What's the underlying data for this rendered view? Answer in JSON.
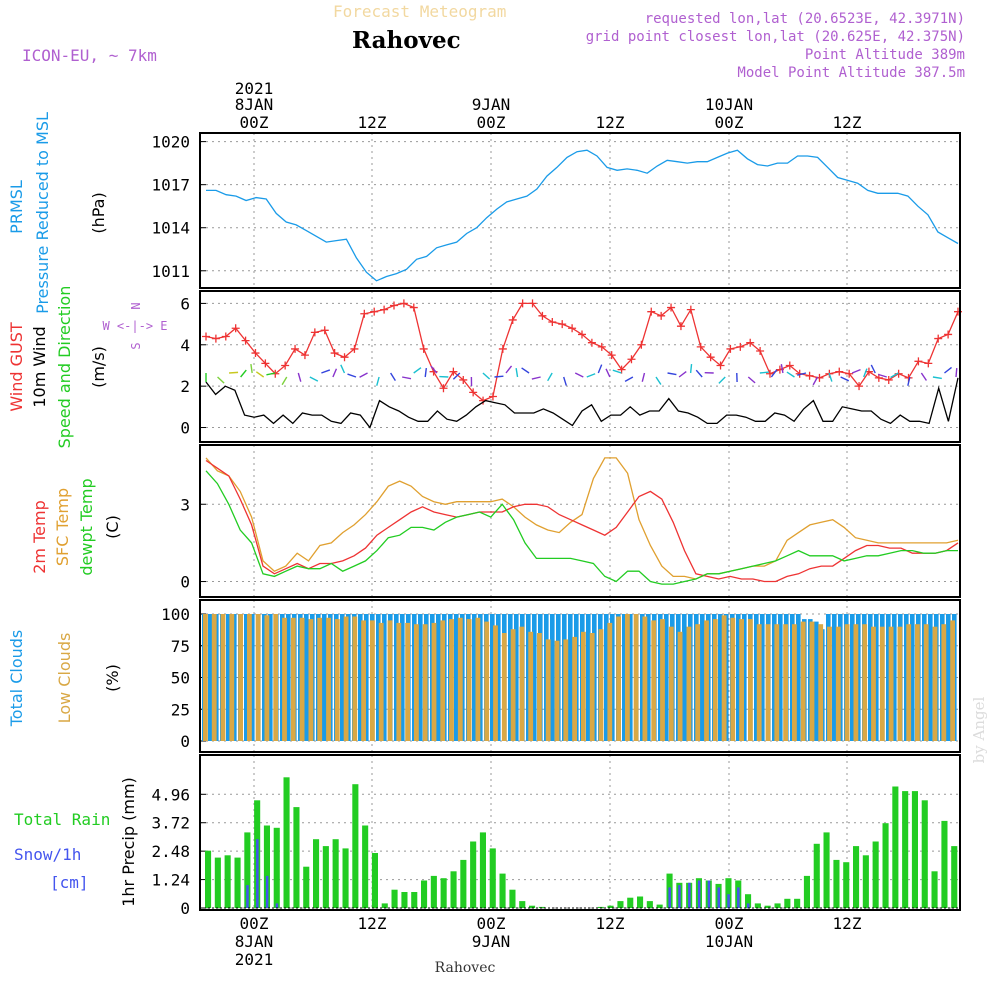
{
  "header": {
    "title": "Rahovec",
    "subtitle": "Forecast Meteogram",
    "model": "ICON-EU, ~ 7km",
    "requested": "requested lon,lat (20.6523E, 42.3971N)",
    "grid_point": "grid point closest lon,lat (20.625E, 42.375N)",
    "point_altitude": "Point Altitude 389m",
    "model_altitude": "Model Point Altitude 387.5m"
  },
  "footer": {
    "place": "Rahovec",
    "credit": "by Angel"
  },
  "time_axis": {
    "top_year": "2021",
    "ticks": [
      "00Z",
      "12Z",
      "00Z",
      "12Z",
      "00Z",
      "12Z"
    ],
    "dates": [
      "8JAN",
      "9JAN",
      "10JAN"
    ],
    "bottom_year": "2021"
  },
  "colors": {
    "pressure": "#1a9be8",
    "gust": "#ee3333",
    "wind": "#000000",
    "t2m": "#ee3333",
    "tsfc": "#e0a030",
    "dew": "#22cc22",
    "total_clouds": "#1a9be8",
    "low_clouds": "#d9a845",
    "rain": "#22cc22",
    "snow": "#4455ee",
    "purple": "#b060d0"
  },
  "chart_data": [
    {
      "type": "line",
      "title": "PRMSL Pressure Reduced to MSL",
      "ylabel": "(hPa)",
      "yticks": [
        "1020",
        "1017",
        "1014",
        "1011"
      ],
      "ylim": [
        1009.8,
        1020.6
      ],
      "x_hours": [
        -3,
        -2,
        -1,
        0,
        1,
        2,
        3,
        4,
        5,
        6,
        7,
        8,
        9,
        10,
        11,
        12,
        13,
        14,
        15,
        16,
        17,
        18,
        19,
        20,
        21,
        22,
        23,
        24,
        25,
        26,
        27,
        28,
        29,
        30,
        31,
        32,
        33,
        34,
        35,
        36,
        37,
        38,
        39,
        40,
        41,
        42,
        43,
        44,
        45,
        46,
        47,
        48,
        49,
        50,
        51,
        52,
        53,
        54,
        55,
        56,
        57,
        58,
        59,
        60,
        61,
        62,
        63,
        64,
        65,
        66,
        67,
        68,
        69,
        70,
        71,
        72
      ],
      "values": [
        1016.6,
        1016.6,
        1016.3,
        1016.2,
        1015.9,
        1016.1,
        1016.0,
        1015.0,
        1014.4,
        1014.2,
        1013.8,
        1013.4,
        1013.0,
        1013.1,
        1013.2,
        1011.9,
        1010.9,
        1010.3,
        1010.6,
        1010.8,
        1011.1,
        1011.8,
        1012.0,
        1012.6,
        1012.8,
        1013.0,
        1013.6,
        1014.0,
        1014.7,
        1015.3,
        1015.8,
        1016.0,
        1016.2,
        1016.7,
        1017.6,
        1018.2,
        1018.9,
        1019.3,
        1019.4,
        1019.0,
        1018.2,
        1018.0,
        1018.1,
        1018.0,
        1017.8,
        1018.3,
        1018.7,
        1018.6,
        1018.5,
        1018.6,
        1018.6,
        1018.9,
        1019.2,
        1019.4,
        1018.8,
        1018.4,
        1018.3,
        1018.5,
        1018.5,
        1019.0,
        1019.0,
        1018.9,
        1018.2,
        1017.5,
        1017.3,
        1017.1,
        1016.6,
        1016.4,
        1016.4,
        1016.4,
        1016.2,
        1015.5,
        1014.9,
        1013.7,
        1013.3,
        1012.9
      ]
    },
    {
      "type": "line",
      "title": "Wind GUST / 10m Wind Speed and Direction",
      "ylabel": "(m/s)",
      "compass": [
        "N",
        "W <-|-> E",
        "S"
      ],
      "yticks": [
        "6",
        "4",
        "2",
        "0"
      ],
      "ylim": [
        -0.7,
        6.6
      ],
      "series": [
        {
          "name": "Wind GUST",
          "values": [
            4.4,
            4.3,
            4.4,
            4.8,
            4.2,
            3.6,
            3.1,
            2.6,
            3.0,
            3.8,
            3.5,
            4.6,
            4.7,
            3.6,
            3.4,
            3.8,
            5.5,
            5.6,
            5.7,
            5.9,
            6.0,
            5.8,
            3.8,
            2.7,
            1.9,
            2.7,
            2.3,
            1.7,
            1.3,
            1.5,
            3.8,
            5.2,
            6.0,
            6.0,
            5.4,
            5.1,
            5.0,
            4.8,
            4.5,
            4.1,
            3.9,
            3.5,
            2.8,
            3.3,
            4.0,
            5.6,
            5.4,
            5.8,
            4.9,
            5.7,
            3.9,
            3.4,
            3.0,
            3.8,
            3.9,
            4.1,
            3.7,
            2.6,
            2.8,
            3.0,
            2.6,
            2.5,
            2.4,
            2.6,
            2.7,
            2.6,
            2.0,
            2.7,
            2.4,
            2.3,
            2.6,
            2.4,
            3.2,
            3.1,
            4.3,
            4.5,
            5.6
          ]
        },
        {
          "name": "10m Wind",
          "values": [
            2.2,
            1.6,
            2.0,
            1.8,
            0.6,
            0.5,
            0.6,
            0.2,
            0.6,
            0.2,
            0.7,
            0.6,
            0.6,
            0.3,
            0.2,
            0.7,
            0.6,
            0.0,
            1.3,
            1.0,
            0.8,
            0.5,
            0.3,
            0.3,
            0.8,
            0.4,
            0.3,
            0.6,
            1.0,
            1.3,
            1.2,
            1.1,
            0.7,
            0.7,
            0.7,
            0.9,
            0.7,
            0.4,
            0.1,
            0.8,
            1.1,
            0.3,
            0.6,
            0.6,
            1.0,
            0.6,
            0.8,
            0.8,
            1.4,
            0.8,
            0.7,
            0.5,
            0.2,
            0.2,
            0.6,
            0.6,
            0.5,
            0.3,
            0.3,
            0.7,
            0.6,
            0.3,
            0.9,
            1.3,
            0.3,
            0.3,
            1.0,
            0.9,
            0.8,
            0.8,
            0.4,
            0.2,
            0.6,
            0.3,
            0.3,
            0.2,
            1.9,
            0.3,
            2.4
          ]
        }
      ]
    },
    {
      "type": "line",
      "title": "2m Temp / SFC Temp / dewpt Temp",
      "ylabel": "(C)",
      "yticks": [
        "3",
        "0"
      ],
      "ylim": [
        -0.6,
        5.3
      ],
      "series": [
        {
          "name": "2m Temp",
          "values": [
            4.7,
            4.4,
            4.1,
            3.2,
            2.2,
            0.6,
            0.3,
            0.5,
            0.7,
            0.5,
            0.7,
            0.7,
            0.8,
            1.0,
            1.3,
            1.8,
            2.1,
            2.4,
            2.7,
            2.9,
            2.7,
            2.6,
            2.5,
            2.6,
            2.7,
            2.7,
            2.7,
            2.9,
            3.0,
            3.0,
            2.9,
            2.6,
            2.4,
            2.2,
            2.0,
            1.8,
            2.1,
            2.7,
            3.3,
            3.5,
            3.2,
            2.3,
            1.2,
            0.3,
            0.2,
            0.1,
            0.2,
            0.1,
            0.1,
            0.0,
            0.0,
            0.2,
            0.3,
            0.5,
            0.6,
            0.6,
            0.9,
            1.2,
            1.4,
            1.4,
            1.3,
            1.3,
            1.1,
            1.1,
            1.1,
            1.2,
            1.5
          ]
        },
        {
          "name": "SFC Temp",
          "values": [
            4.8,
            4.3,
            4.1,
            3.5,
            2.5,
            0.8,
            0.4,
            0.6,
            1.1,
            0.8,
            1.4,
            1.5,
            1.9,
            2.2,
            2.6,
            3.1,
            3.7,
            3.9,
            3.7,
            3.3,
            3.1,
            3.0,
            3.1,
            3.1,
            3.1,
            3.1,
            3.2,
            2.9,
            2.5,
            2.2,
            2.0,
            1.9,
            2.3,
            2.6,
            4.0,
            4.8,
            4.8,
            4.2,
            2.4,
            1.4,
            0.6,
            0.2,
            0.2,
            0.1,
            0.3,
            0.3,
            0.4,
            0.5,
            0.6,
            0.6,
            0.8,
            1.6,
            1.9,
            2.2,
            2.3,
            2.4,
            2.1,
            1.7,
            1.6,
            1.5,
            1.5,
            1.5,
            1.5,
            1.5,
            1.5,
            1.5,
            1.6
          ]
        },
        {
          "name": "dewpt Temp",
          "values": [
            4.3,
            3.8,
            3.0,
            2.0,
            1.5,
            0.3,
            0.2,
            0.4,
            0.6,
            0.5,
            0.5,
            0.7,
            0.4,
            0.6,
            0.8,
            1.2,
            1.7,
            1.8,
            2.1,
            2.1,
            2.0,
            2.3,
            2.5,
            2.6,
            2.7,
            2.5,
            3.0,
            2.4,
            1.5,
            0.9,
            0.9,
            0.9,
            0.9,
            0.8,
            0.7,
            0.2,
            0.0,
            0.4,
            0.4,
            0.0,
            -0.1,
            -0.1,
            0.0,
            0.1,
            0.3,
            0.3,
            0.4,
            0.5,
            0.6,
            0.7,
            0.8,
            1.0,
            1.2,
            1.0,
            1.0,
            1.0,
            0.8,
            0.9,
            1.0,
            1.0,
            1.1,
            1.2,
            1.2,
            1.1,
            1.1,
            1.2,
            1.2
          ]
        }
      ]
    },
    {
      "type": "bar",
      "title": "Total Clouds / Low Clouds",
      "ylabel": "(%)",
      "yticks": [
        "100",
        "75",
        "50",
        "25",
        "0"
      ],
      "ylim": [
        0,
        100
      ],
      "series": [
        {
          "name": "Total Clouds",
          "values": [
            100,
            100,
            100,
            100,
            100,
            100,
            100,
            100,
            100,
            100,
            100,
            100,
            100,
            100,
            100,
            100,
            100,
            100,
            100,
            100,
            100,
            100,
            100,
            100,
            100,
            100,
            100,
            100,
            100,
            100,
            100,
            100,
            100,
            100,
            100,
            100,
            100,
            100,
            100,
            100,
            100,
            100,
            100,
            100,
            100,
            100,
            100,
            100,
            100,
            100,
            100,
            100,
            100,
            100,
            100,
            100,
            100,
            100,
            100,
            100,
            100,
            100,
            100,
            100,
            100,
            100,
            100,
            100,
            100,
            100,
            100,
            100,
            100,
            100,
            100,
            100,
            100,
            100,
            100,
            100,
            100,
            100,
            100,
            100,
            100,
            100,
            100,
            100,
            100,
            100,
            100,
            100,
            100,
            100,
            100,
            100,
            100,
            100,
            100,
            100,
            96,
            96,
            94,
            88,
            100,
            100,
            100,
            100,
            100,
            100,
            100,
            100,
            100,
            100,
            100,
            100,
            100,
            100,
            100,
            100,
            100,
            100,
            100,
            100,
            100,
            100
          ]
        },
        {
          "name": "Low Clouds",
          "values": [
            100,
            100,
            100,
            100,
            100,
            100,
            100,
            99,
            100,
            97,
            97,
            97,
            96,
            97,
            97,
            96,
            98,
            98,
            95,
            95,
            93,
            95,
            93,
            93,
            92,
            92,
            93,
            95,
            96,
            97,
            96,
            97,
            94,
            91,
            85,
            88,
            90,
            86,
            85,
            80,
            79,
            80,
            82,
            86,
            85,
            88,
            93,
            98,
            100,
            100,
            98,
            95,
            96,
            90,
            86,
            90,
            92,
            95,
            96,
            99,
            97,
            96,
            96,
            92,
            92,
            92,
            92,
            92,
            94,
            94,
            92,
            90,
            90,
            92,
            92,
            92,
            90,
            90,
            90,
            90,
            92,
            92,
            92,
            90,
            92,
            95
          ]
        }
      ]
    },
    {
      "type": "bar",
      "title": "Total Rain / Snow/1h [cm]",
      "ylabel": "1hr Precip (mm)",
      "yticks": [
        "4.96",
        "3.72",
        "2.48",
        "1.24",
        "0"
      ],
      "ylim": [
        0,
        6.5
      ],
      "series": [
        {
          "name": "Total Rain",
          "values": [
            2.5,
            2.2,
            2.3,
            2.2,
            3.3,
            4.7,
            3.6,
            3.5,
            5.7,
            4.4,
            1.8,
            3.0,
            2.7,
            3.0,
            2.6,
            5.4,
            3.6,
            2.4,
            0.2,
            0.8,
            0.7,
            0.7,
            1.2,
            1.4,
            1.3,
            1.6,
            2.1,
            2.9,
            3.3,
            2.6,
            1.5,
            0.8,
            0.3,
            0.1,
            0.05,
            0,
            0,
            0,
            0,
            0,
            0.05,
            0.1,
            0.3,
            0.45,
            0.5,
            0.3,
            0.15,
            1.5,
            1.1,
            1.1,
            1.3,
            1.2,
            1.05,
            1.3,
            1.2,
            0.6,
            0.2,
            0.1,
            0.2,
            0.4,
            0.4,
            1.4,
            2.8,
            3.3,
            2.1,
            2.0,
            2.7,
            2.3,
            2.9,
            3.7,
            5.3,
            5.1,
            5.1,
            4.7,
            1.6,
            3.8,
            2.7
          ]
        },
        {
          "name": "Snow/1h",
          "values": [
            0,
            0,
            0,
            0,
            1.0,
            3.0,
            1.4,
            0.2,
            0,
            0,
            0,
            0,
            0,
            0,
            0,
            0,
            0,
            0,
            0,
            0,
            0,
            0,
            0,
            0,
            0,
            0,
            0,
            0,
            0,
            0,
            0,
            0,
            0,
            0,
            0,
            0,
            0,
            0,
            0,
            0,
            0,
            0,
            0,
            0,
            0,
            0,
            0,
            0.9,
            1.0,
            1.1,
            1.2,
            1.2,
            0.9,
            0.6,
            0.9,
            0.2,
            0,
            0,
            0,
            0,
            0,
            0,
            0,
            0,
            0,
            0,
            0,
            0,
            0,
            0,
            0,
            0,
            0,
            0,
            0,
            0,
            0
          ]
        }
      ]
    }
  ]
}
